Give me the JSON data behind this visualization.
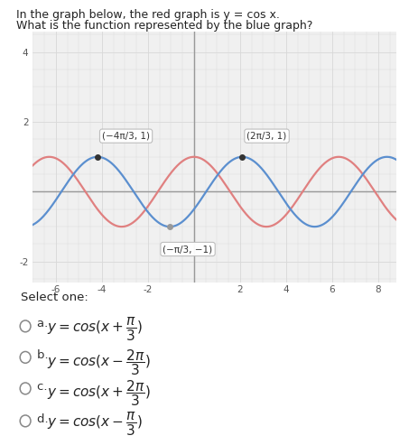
{
  "title_line1": "In the graph below, the red graph is y = cos x.",
  "title_line2": "What is the function represented by the blue graph?",
  "xlim": [
    -7.0,
    8.8
  ],
  "ylim": [
    -2.6,
    4.6
  ],
  "xticks": [
    -6,
    -4,
    -2,
    2,
    4,
    6,
    8
  ],
  "ytick_pos": [
    2,
    4
  ],
  "ytick_neg": [
    -2
  ],
  "red_color": "#e08080",
  "blue_color": "#5b8fcf",
  "bg_color": "#f0f0f0",
  "grid_color": "#d8d8d8",
  "axis_color": "#888888",
  "pt1_x": -4.18879020478639,
  "pt1_y": 1,
  "pt1_label": "(−4π/3, 1)",
  "pt2_x": 2.0943951023932,
  "pt2_y": 1,
  "pt2_label": "(2π/3, 1)",
  "pt3_x": -1.0471975511966,
  "pt3_y": -1,
  "pt3_label": "(−π/3, −1)",
  "options_title": "Select one:",
  "opt_a_pre": "a.   ",
  "opt_a_math": "$y = cos(x +\\dfrac{\\pi}{3})$",
  "opt_b_pre": "b.   ",
  "opt_b_math": "$y = cos(x - \\dfrac{2\\pi}{3})$",
  "opt_c_pre": "c.   ",
  "opt_c_math": "$y = cos(x + \\dfrac{2\\pi}{3})$",
  "opt_d_pre": "d.   ",
  "opt_d_math": "$y = cos(x - \\dfrac{\\pi}{3})$"
}
